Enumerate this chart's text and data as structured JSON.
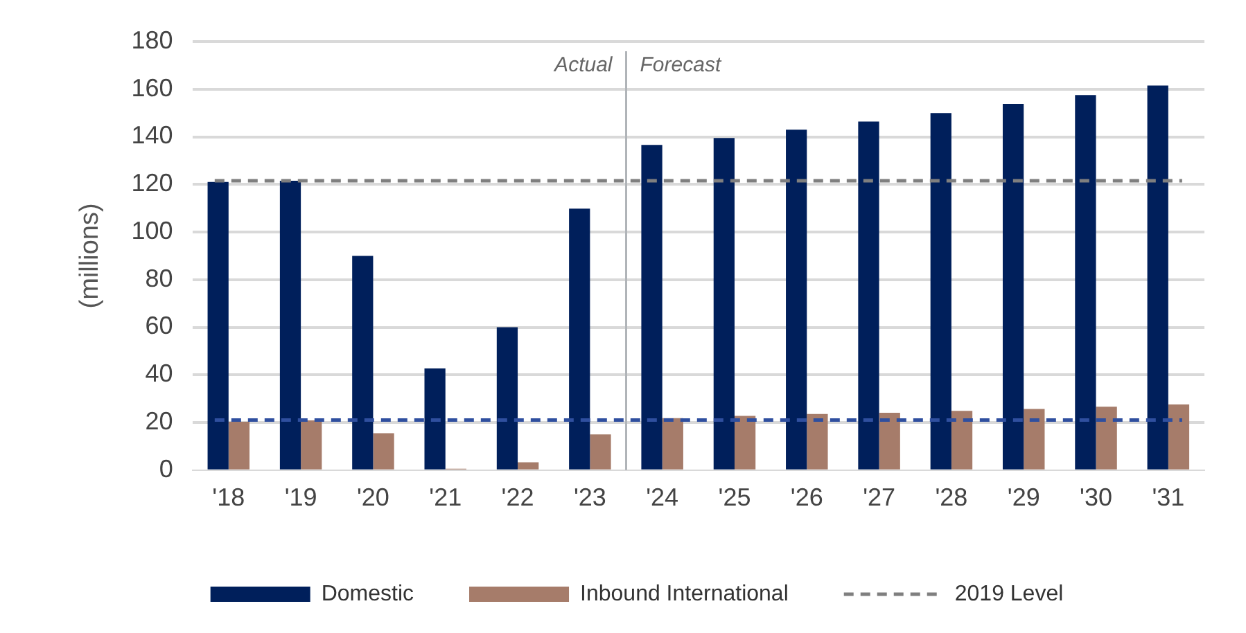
{
  "chart_data": {
    "type": "bar",
    "ylabel": "(millions)",
    "categories": [
      "'18",
      "'19",
      "'20",
      "'21",
      "'22",
      "'23",
      "'24",
      "'25",
      "'26",
      "'27",
      "'28",
      "'29",
      "'30",
      "'31"
    ],
    "series": [
      {
        "name": "Domestic",
        "color": "#001f5b",
        "values": [
          121,
          121.5,
          90,
          42.7,
          60,
          109.8,
          136.6,
          139.5,
          143,
          146.4,
          150,
          153.8,
          157.5,
          161.5
        ]
      },
      {
        "name": "Inbound International",
        "color": "#a67c6a",
        "values": [
          20.3,
          20.9,
          15.5,
          0.6,
          3.3,
          15,
          21.8,
          22.8,
          23.6,
          24.1,
          24.9,
          25.7,
          26.6,
          27.6
        ]
      }
    ],
    "ref_lines": [
      {
        "axis": "y",
        "value": 121.5,
        "label": "2019 Level",
        "color": "#7f7f7f",
        "line_style": "dashed"
      },
      {
        "axis": "y",
        "value": 21,
        "color": "#2f4f9f",
        "line_style": "dashed"
      },
      {
        "axis": "x",
        "value": "'24",
        "color": "#b0b4b8"
      }
    ],
    "annotations": [
      "Actual",
      "Forecast"
    ],
    "ylim": [
      0,
      180
    ],
    "yticks": [
      0,
      20,
      40,
      60,
      80,
      100,
      120,
      140,
      160,
      180
    ],
    "grid": "y",
    "legend": "bottom"
  }
}
